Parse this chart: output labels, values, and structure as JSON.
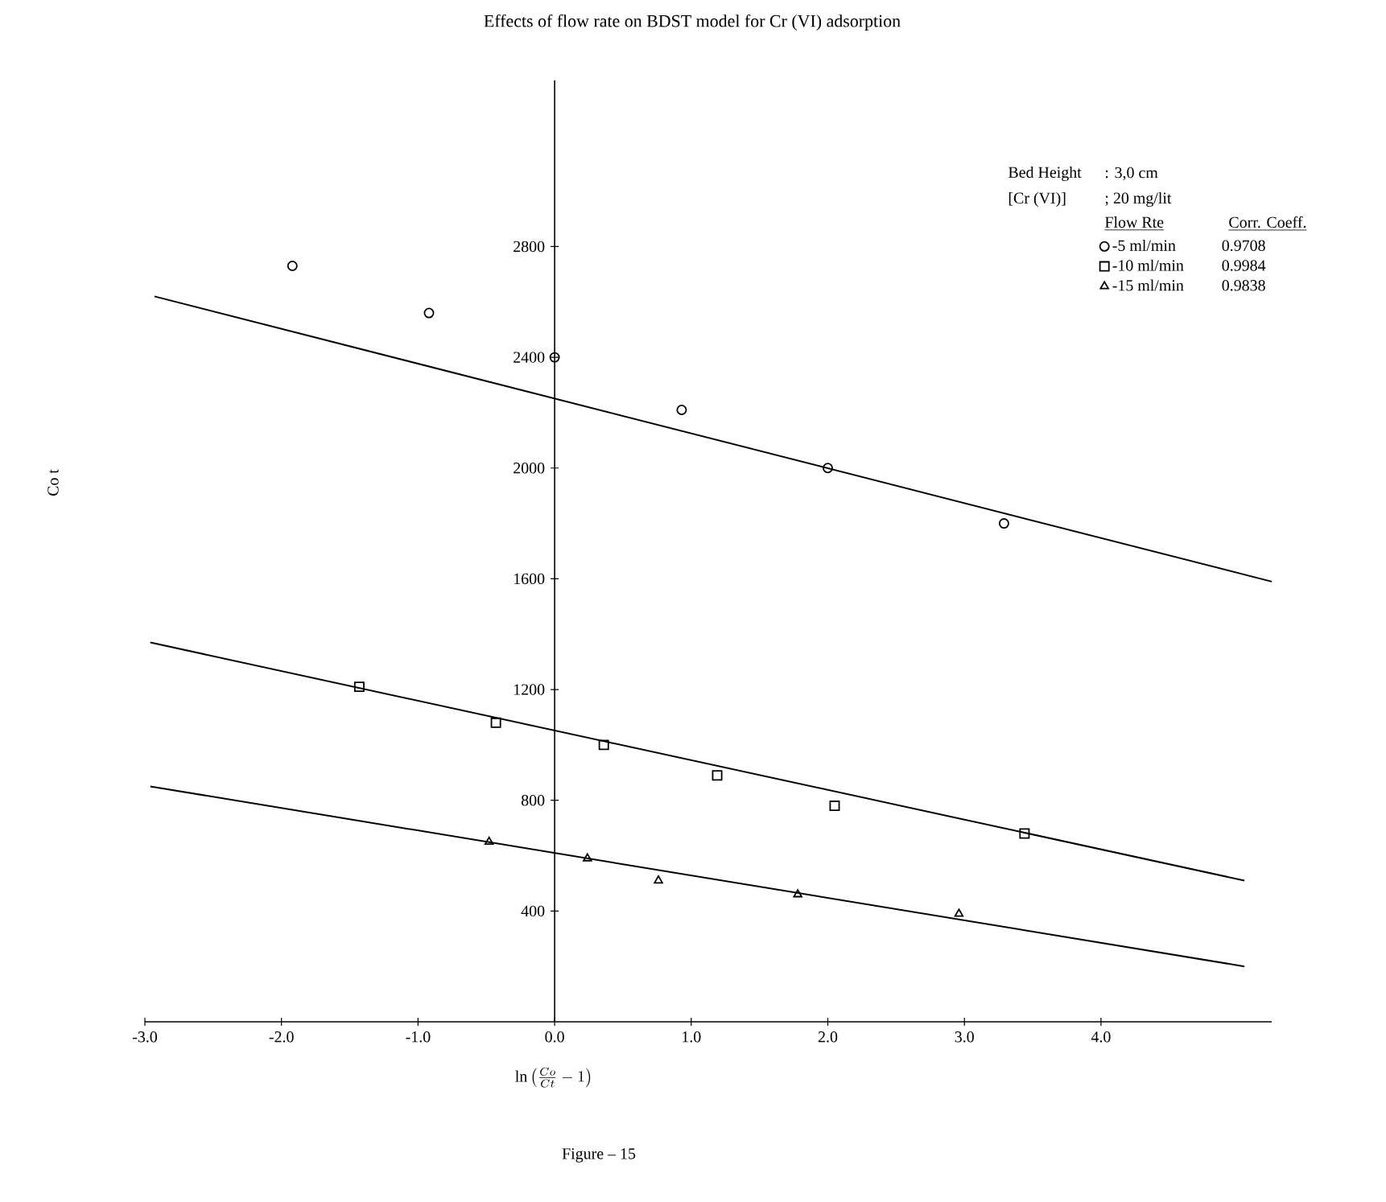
{
  "chart_data": {
    "type": "scatter",
    "title": "Effects of flow rate on BDST model for Cr (VI) adsorption",
    "xlabel": "\\ln\\left(\\frac{Co}{Ct}-1\\right)",
    "ylabel": "Co t",
    "xlim": [
      -3,
      5.25
    ],
    "ylim": [
      0,
      3400
    ],
    "xticks": [
      {
        "value": -3,
        "label": "-3.0"
      },
      {
        "value": -2,
        "label": "-2.0"
      },
      {
        "value": -1,
        "label": "-1.0"
      },
      {
        "value": 0,
        "label": "0.0"
      },
      {
        "value": 1,
        "label": "1.0"
      },
      {
        "value": 2,
        "label": "2.0"
      },
      {
        "value": 3,
        "label": "3.0"
      },
      {
        "value": 4,
        "label": "4.0"
      }
    ],
    "yticks": [
      400,
      800,
      1200,
      1600,
      2000,
      2400,
      2800
    ],
    "grid": false,
    "legend": "top right",
    "series": [
      {
        "name": "-5 ml/min",
        "marker": "circle",
        "color": "#000000",
        "x": [
          -1.92,
          -0.92,
          0.0,
          0.93,
          2.0,
          3.29
        ],
        "values": [
          2730,
          2560,
          2400,
          2210,
          2000,
          1800
        ]
      },
      {
        "name": "-10 ml/min",
        "marker": "square",
        "color": "#000000",
        "x": [
          -1.43,
          -0.43,
          0.36,
          1.19,
          2.05,
          3.44
        ],
        "values": [
          1210,
          1080,
          1000,
          890,
          780,
          680
        ]
      },
      {
        "name": "-15 ml/min",
        "marker": "triangle",
        "color": "#000000",
        "x": [
          -0.48,
          0.24,
          0.76,
          1.78,
          2.96
        ],
        "values": [
          650,
          590,
          510,
          460,
          390
        ]
      },
      {
        "type": "line",
        "marker": "none",
        "line_style": "solid",
        "color": "#000000",
        "x": [
          -2.93,
          5.25
        ],
        "values": [
          2620,
          1590
        ]
      },
      {
        "type": "line",
        "marker": "none",
        "line_style": "solid",
        "color": "#000000",
        "x": [
          -2.96,
          5.05
        ],
        "values": [
          1370,
          510
        ]
      },
      {
        "type": "line",
        "marker": "none",
        "line_style": "solid",
        "color": "#000000",
        "x": [
          -2.96,
          5.05
        ],
        "values": [
          850,
          200
        ]
      }
    ],
    "annotations": [
      "Bed Height",
      ": 3,0 cm",
      "[Cr (VI)]",
      "; 20 mg/lit",
      "Flow Rte",
      "Corr. Coeff.",
      "0.9708",
      "0.9984",
      "0.9838",
      "Figure – 15"
    ]
  }
}
